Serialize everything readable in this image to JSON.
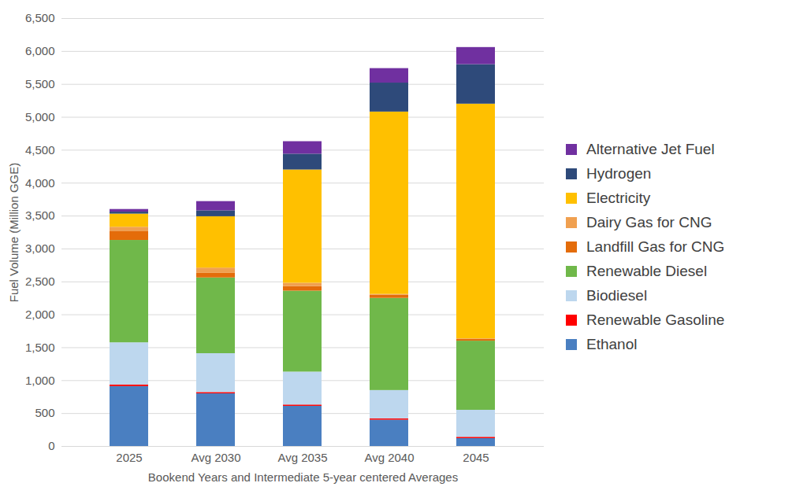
{
  "chart_data": {
    "type": "bar",
    "stacked": true,
    "grid": true,
    "legend": "right",
    "x_label": "Bookend Years and Intermediate 5-year centered Averages",
    "y_label": "Fuel Volume (Million GGE)",
    "categories": [
      "2025",
      "Avg 2030",
      "Avg 2035",
      "Avg 2040",
      "2045"
    ],
    "ylim": [
      0,
      6500
    ],
    "yticks": [
      0,
      500,
      {
        "value": 1000,
        "label": "1,000"
      },
      {
        "value": 1500,
        "label": "1,500"
      },
      {
        "value": 2000,
        "label": "2,000"
      },
      {
        "value": 2500,
        "label": "2,500"
      },
      {
        "value": 3000,
        "label": "3,000"
      },
      {
        "value": 3500,
        "label": "3,500"
      },
      {
        "value": 4000,
        "label": "4,000"
      },
      {
        "value": 4500,
        "label": "4,500"
      },
      {
        "value": 5000,
        "label": "5,000"
      },
      {
        "value": 5500,
        "label": "5,500"
      },
      {
        "value": 6000,
        "label": "6,000"
      },
      {
        "value": 6500,
        "label": "6,500"
      }
    ],
    "series": [
      {
        "name": "Ethanol",
        "color": "#4a7fc1",
        "values": [
          910,
          800,
          610,
          400,
          120
        ]
      },
      {
        "name": "Renewable Gasoline",
        "color": "#ff0000",
        "values": [
          25,
          20,
          20,
          20,
          20
        ]
      },
      {
        "name": "Biodiesel",
        "color": "#bdd7ee",
        "values": [
          640,
          590,
          500,
          430,
          410
        ]
      },
      {
        "name": "Renewable Diesel",
        "color": "#70b84a",
        "values": [
          1555,
          1150,
          1230,
          1400,
          1050
        ]
      },
      {
        "name": "Landfill Gas for CNG",
        "color": "#e46c0a",
        "values": [
          140,
          70,
          70,
          50,
          30
        ]
      },
      {
        "name": "Dairy Gas for CNG",
        "color": "#f0a050",
        "values": [
          60,
          80,
          50,
          10,
          5
        ]
      },
      {
        "name": "Electricity",
        "color": "#ffc000",
        "values": [
          200,
          780,
          1720,
          2770,
          3565
        ]
      },
      {
        "name": "Hydrogen",
        "color": "#2e4a7a",
        "values": [
          30,
          90,
          240,
          440,
          600
        ]
      },
      {
        "name": "Alternative Jet Fuel",
        "color": "#7030a0",
        "values": [
          40,
          140,
          190,
          220,
          260
        ]
      }
    ]
  }
}
